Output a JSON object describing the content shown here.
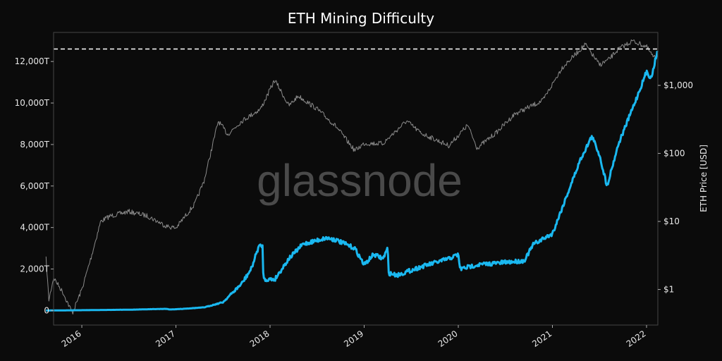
{
  "chart_data": {
    "type": "line",
    "title": "ETH Mining Difficulty",
    "watermark": "glassnode",
    "xlabel": "",
    "ylabel_left": "",
    "ylabel_right": "ETH Price [USD]",
    "xlim": [
      2015.7,
      2022.12
    ],
    "ylim_left": [
      -700,
      13400
    ],
    "ylim_right_log": [
      0.3,
      6000
    ],
    "x_ticks": [
      {
        "v": 2016,
        "label": "2016"
      },
      {
        "v": 2017,
        "label": "2017"
      },
      {
        "v": 2018,
        "label": "2018"
      },
      {
        "v": 2019,
        "label": "2019"
      },
      {
        "v": 2020,
        "label": "2020"
      },
      {
        "v": 2021,
        "label": "2021"
      },
      {
        "v": 2022,
        "label": "2022"
      }
    ],
    "y_left_ticks": [
      {
        "v": 0,
        "label": "0"
      },
      {
        "v": 2000,
        "label": "2,000T"
      },
      {
        "v": 4000,
        "label": "4,000T"
      },
      {
        "v": 6000,
        "label": "6,000T"
      },
      {
        "v": 8000,
        "label": "8,000T"
      },
      {
        "v": 10000,
        "label": "10,000T"
      },
      {
        "v": 12000,
        "label": "12,000T"
      }
    ],
    "y_right_ticks": [
      {
        "v": 1,
        "label": "$1"
      },
      {
        "v": 10,
        "label": "$10"
      },
      {
        "v": 100,
        "label": "$100"
      },
      {
        "v": 1000,
        "label": "$1,000"
      }
    ],
    "ath_line": {
      "value": 12600,
      "style": "dashed"
    },
    "series": [
      {
        "name": "Mining Difficulty",
        "axis": "left",
        "unit": "T",
        "color": "#1ab8f0",
        "points": [
          [
            2015.62,
            0
          ],
          [
            2016.0,
            15
          ],
          [
            2016.5,
            40
          ],
          [
            2016.9,
            80
          ],
          [
            2016.93,
            50
          ],
          [
            2017.0,
            60
          ],
          [
            2017.3,
            150
          ],
          [
            2017.5,
            400
          ],
          [
            2017.7,
            1300
          ],
          [
            2017.8,
            2000
          ],
          [
            2017.88,
            3100
          ],
          [
            2017.92,
            3100
          ],
          [
            2017.93,
            1500
          ],
          [
            2018.05,
            1500
          ],
          [
            2018.2,
            2500
          ],
          [
            2018.35,
            3200
          ],
          [
            2018.6,
            3500
          ],
          [
            2018.7,
            3400
          ],
          [
            2018.9,
            3000
          ],
          [
            2019.0,
            2200
          ],
          [
            2019.1,
            2700
          ],
          [
            2019.2,
            2500
          ],
          [
            2019.25,
            3000
          ],
          [
            2019.26,
            1800
          ],
          [
            2019.35,
            1700
          ],
          [
            2019.6,
            2100
          ],
          [
            2019.9,
            2500
          ],
          [
            2020.0,
            2700
          ],
          [
            2020.02,
            2000
          ],
          [
            2020.2,
            2200
          ],
          [
            2020.7,
            2400
          ],
          [
            2020.8,
            3200
          ],
          [
            2021.0,
            3700
          ],
          [
            2021.15,
            5500
          ],
          [
            2021.3,
            7300
          ],
          [
            2021.42,
            8400
          ],
          [
            2021.5,
            7500
          ],
          [
            2021.58,
            6000
          ],
          [
            2021.7,
            8000
          ],
          [
            2021.9,
            10300
          ],
          [
            2022.0,
            11500
          ],
          [
            2022.05,
            11200
          ],
          [
            2022.12,
            12600
          ]
        ]
      },
      {
        "name": "ETH Price",
        "axis": "right",
        "unit": "USD",
        "color": "#8a8a8a",
        "points": [
          [
            2015.62,
            2.8
          ],
          [
            2015.65,
            0.7
          ],
          [
            2015.7,
            1.5
          ],
          [
            2015.8,
            0.9
          ],
          [
            2015.9,
            0.45
          ],
          [
            2016.0,
            1.0
          ],
          [
            2016.1,
            3
          ],
          [
            2016.2,
            10
          ],
          [
            2016.3,
            12
          ],
          [
            2016.5,
            14
          ],
          [
            2016.7,
            12
          ],
          [
            2016.9,
            8.5
          ],
          [
            2017.0,
            8
          ],
          [
            2017.2,
            18
          ],
          [
            2017.3,
            40
          ],
          [
            2017.45,
            300
          ],
          [
            2017.55,
            190
          ],
          [
            2017.7,
            300
          ],
          [
            2017.9,
            450
          ],
          [
            2018.05,
            1200
          ],
          [
            2018.1,
            900
          ],
          [
            2018.2,
            500
          ],
          [
            2018.3,
            700
          ],
          [
            2018.5,
            450
          ],
          [
            2018.7,
            250
          ],
          [
            2018.9,
            110
          ],
          [
            2019.0,
            140
          ],
          [
            2019.2,
            140
          ],
          [
            2019.45,
            300
          ],
          [
            2019.6,
            200
          ],
          [
            2019.9,
            130
          ],
          [
            2020.1,
            260
          ],
          [
            2020.2,
            120
          ],
          [
            2020.4,
            200
          ],
          [
            2020.6,
            380
          ],
          [
            2020.9,
            600
          ],
          [
            2021.1,
            1800
          ],
          [
            2021.35,
            4000
          ],
          [
            2021.5,
            2000
          ],
          [
            2021.6,
            2400
          ],
          [
            2021.7,
            3400
          ],
          [
            2021.85,
            4500
          ],
          [
            2022.0,
            3700
          ],
          [
            2022.08,
            2500
          ],
          [
            2022.12,
            3000
          ]
        ]
      }
    ]
  }
}
